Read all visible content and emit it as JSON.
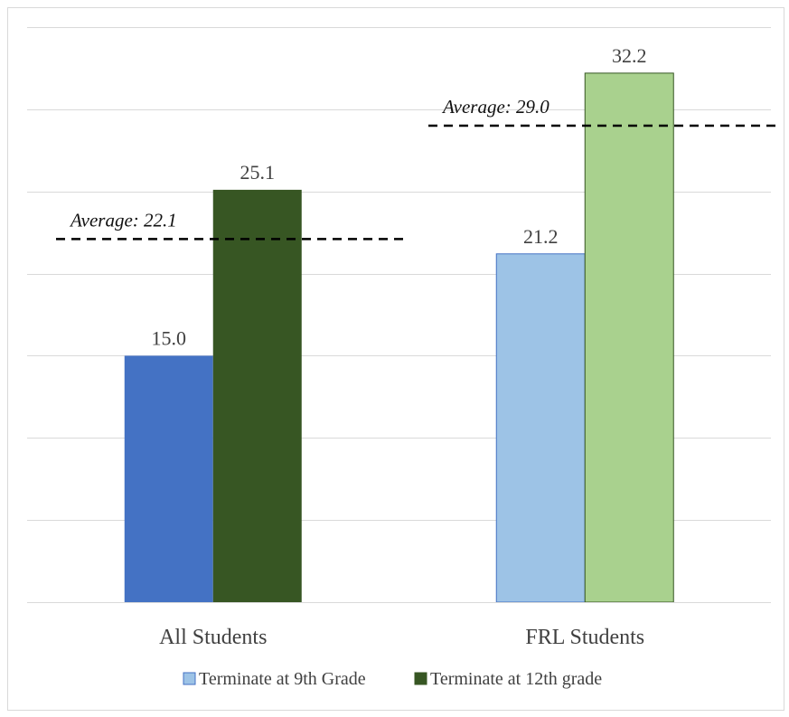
{
  "chart_data": {
    "type": "bar",
    "categories": [
      "All Students",
      "FRL Students"
    ],
    "series": [
      {
        "name": "Terminate at 9th Grade",
        "values": [
          15.0,
          21.2
        ],
        "colors": [
          "#4472c4",
          "#9dc3e6"
        ]
      },
      {
        "name": "Terminate at 12th grade",
        "values": [
          25.1,
          32.2
        ],
        "colors": [
          "#375623",
          "#a9d18e"
        ]
      }
    ],
    "data_labels": [
      [
        "15.0",
        "21.2"
      ],
      [
        "25.1",
        "32.2"
      ]
    ],
    "averages": [
      {
        "value": 22.1,
        "label": "Average: 22.1"
      },
      {
        "value": 29.0,
        "label": "Average: 29.0"
      }
    ],
    "ylim": [
      0,
      35
    ],
    "y_gridline_step": 5,
    "grid": true,
    "y_axis_labels_shown": false,
    "legend": {
      "placement": "bottom",
      "entries": [
        {
          "label": "Terminate at 9th Grade",
          "color": "#9dc3e6",
          "border": "#4472c4"
        },
        {
          "label": "Terminate at 12th grade",
          "color": "#375623",
          "border": "#375623"
        }
      ]
    },
    "title": "",
    "xlabel": "",
    "ylabel": ""
  }
}
